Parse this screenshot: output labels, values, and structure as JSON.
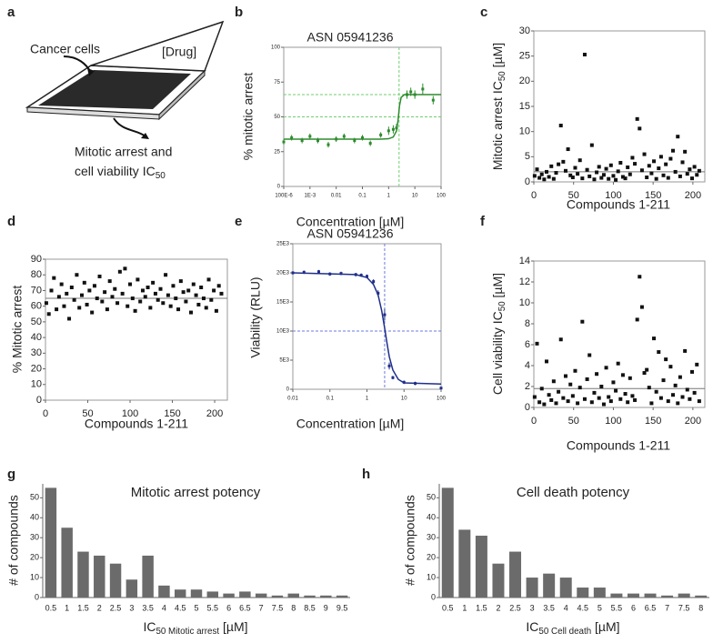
{
  "diagram": {
    "label": "a",
    "texts": [
      "Cancer cells",
      "[Drug]",
      "Mitotic arrest and"
    ],
    "last_line": [
      {
        "text": "cell viability IC"
      },
      {
        "text": "50",
        "sub": true
      }
    ]
  },
  "chart_data": [
    {
      "type": "scatter",
      "label": "b",
      "title": "ASN 05941236",
      "xlabel": "Concentration [µM]",
      "ylabel": "% mitotic arrest",
      "xlog": true,
      "color": "#2e8b2e",
      "ref_color": "#6fcf6f",
      "xlim": [
        0.0001,
        100
      ],
      "xticks": [
        {
          "value": 0.0001,
          "label": "100E-6"
        },
        {
          "value": 0.001,
          "label": "1E-3"
        },
        0.01,
        0.1,
        1,
        10,
        100
      ],
      "ylim": [
        0,
        100
      ],
      "yticks": [
        0,
        25,
        50,
        75,
        100
      ],
      "x": [
        0.0001,
        0.0002,
        0.0005,
        0.001,
        0.002,
        0.005,
        0.01,
        0.02,
        0.05,
        0.1,
        0.2,
        0.5,
        1,
        1.5,
        2,
        5,
        7,
        10,
        20,
        50
      ],
      "values": [
        32,
        35,
        33,
        36,
        33,
        30,
        34,
        36,
        33,
        35,
        31,
        37,
        40,
        41,
        42,
        66,
        68,
        66,
        70,
        62
      ],
      "errors": [
        2,
        2,
        2,
        2,
        2,
        2,
        2,
        2,
        2,
        2,
        2,
        2,
        3,
        3,
        3,
        3,
        3,
        3,
        4,
        3
      ],
      "fit": {
        "x": [
          0.0001,
          0.01,
          0.5,
          1,
          1.5,
          2,
          2.3,
          2.6,
          3,
          4,
          10,
          100
        ],
        "values": [
          34,
          34,
          34,
          34.3,
          35.5,
          40,
          48,
          58,
          64,
          66,
          66,
          66
        ]
      },
      "hlines": [
        50,
        66
      ],
      "vlines": [
        2.5
      ]
    },
    {
      "type": "scatter",
      "label": "c",
      "xlabel": "Compounds 1-211",
      "ylabel": [
        {
          "text": "Mitotic arrest  IC"
        },
        {
          "text": "50",
          "sub": true
        },
        {
          "text": " [µM]"
        }
      ],
      "color": "#111",
      "ref_color": "#777",
      "xlim": [
        0,
        215
      ],
      "xticks": [
        0,
        50,
        100,
        150,
        200
      ],
      "ylim": [
        0,
        30
      ],
      "yticks": [
        0,
        5,
        10,
        15,
        20,
        25,
        30
      ],
      "x": [
        1,
        4,
        7,
        10,
        13,
        16,
        19,
        22,
        25,
        28,
        31,
        34,
        37,
        40,
        43,
        46,
        49,
        52,
        55,
        58,
        61,
        64,
        67,
        70,
        73,
        76,
        79,
        82,
        85,
        88,
        91,
        94,
        97,
        100,
        103,
        106,
        109,
        112,
        115,
        118,
        121,
        124,
        127,
        130,
        133,
        136,
        139,
        142,
        145,
        148,
        151,
        154,
        157,
        160,
        163,
        166,
        169,
        172,
        175,
        178,
        181,
        184,
        187,
        190,
        193,
        196,
        199,
        202,
        205,
        208
      ],
      "values": [
        1.2,
        2.5,
        0.8,
        1.5,
        0.5,
        2.0,
        1.0,
        3.1,
        0.6,
        1.8,
        3.5,
        11.2,
        4.0,
        2.2,
        6.5,
        1.3,
        0.9,
        2.8,
        1.6,
        4.3,
        0.7,
        25.3,
        2.4,
        1.1,
        7.3,
        0.5,
        1.9,
        3.0,
        0.8,
        1.4,
        2.6,
        0.6,
        3.3,
        1.2,
        0.4,
        2.1,
        3.8,
        1.0,
        0.7,
        2.9,
        1.5,
        4.8,
        3.6,
        12.5,
        10.6,
        2.3,
        5.5,
        0.9,
        3.2,
        1.7,
        4.1,
        0.6,
        2.7,
        5.0,
        1.3,
        3.5,
        0.8,
        4.6,
        6.2,
        2.0,
        9.0,
        1.1,
        3.9,
        6.0,
        1.6,
        2.5,
        0.7,
        3.0,
        1.4,
        2.2
      ],
      "hlines": [
        2
      ]
    },
    {
      "type": "scatter",
      "label": "d",
      "xlabel": "Compounds 1-211",
      "ylabel": "% Mitotic arrest",
      "color": "#111",
      "ref_color": "#777",
      "xlim": [
        0,
        215
      ],
      "xticks": [
        0,
        50,
        100,
        150,
        200
      ],
      "ylim": [
        0,
        90
      ],
      "yticks": [
        0,
        10,
        20,
        30,
        40,
        50,
        60,
        70,
        80,
        90
      ],
      "x": [
        1,
        4,
        7,
        10,
        13,
        16,
        19,
        22,
        25,
        28,
        31,
        34,
        37,
        40,
        43,
        46,
        49,
        52,
        55,
        58,
        61,
        64,
        67,
        70,
        73,
        76,
        79,
        82,
        85,
        88,
        91,
        94,
        97,
        100,
        103,
        106,
        109,
        112,
        115,
        118,
        121,
        124,
        127,
        130,
        133,
        136,
        139,
        142,
        145,
        148,
        151,
        154,
        157,
        160,
        163,
        166,
        169,
        172,
        175,
        178,
        181,
        184,
        187,
        190,
        193,
        196,
        199,
        202,
        205,
        208
      ],
      "values": [
        62,
        55,
        70,
        78,
        58,
        66,
        74,
        60,
        68,
        52,
        72,
        64,
        80,
        59,
        67,
        75,
        61,
        70,
        56,
        73,
        65,
        79,
        63,
        69,
        58,
        76,
        66,
        71,
        62,
        82,
        68,
        84,
        60,
        74,
        65,
        57,
        77,
        63,
        70,
        66,
        72,
        59,
        75,
        68,
        64,
        71,
        62,
        80,
        67,
        60,
        73,
        65,
        58,
        76,
        69,
        63,
        70,
        56,
        74,
        67,
        61,
        72,
        65,
        59,
        77,
        64,
        70,
        57,
        73,
        68
      ],
      "hlines": [
        65
      ]
    },
    {
      "type": "scatter",
      "label": "e",
      "title": "ASN 05941236",
      "xlabel": "Concentration [µM]",
      "ylabel": "Viability (RLU)",
      "xlog": true,
      "color": "#1f2f8a",
      "ref_color": "#6b7be0",
      "xlim": [
        0.01,
        100
      ],
      "xticks": [
        0.01,
        0.1,
        1,
        10,
        100
      ],
      "ylim": [
        0,
        25000
      ],
      "yticks": [
        0,
        {
          "value": 5000,
          "label": "5E3"
        },
        {
          "value": 10000,
          "label": "10E3"
        },
        {
          "value": 15000,
          "label": "15E3"
        },
        {
          "value": 20000,
          "label": "20E3"
        },
        {
          "value": 25000,
          "label": "25E3"
        }
      ],
      "x": [
        0.01,
        0.02,
        0.05,
        0.1,
        0.2,
        0.5,
        0.7,
        1,
        1.5,
        2,
        3,
        4,
        5,
        10,
        20,
        100
      ],
      "values": [
        20000,
        20100,
        20200,
        19800,
        19900,
        19700,
        19600,
        19400,
        18500,
        16500,
        12800,
        4000,
        2000,
        1200,
        1000,
        200
      ],
      "errors": [
        300,
        300,
        300,
        300,
        300,
        300,
        300,
        300,
        400,
        500,
        1000,
        600,
        300,
        300,
        300,
        200
      ],
      "fit": {
        "x": [
          0.01,
          0.5,
          1,
          1.5,
          2,
          2.5,
          3,
          3.5,
          4,
          5,
          7,
          10,
          100
        ],
        "values": [
          20000,
          19700,
          19200,
          18000,
          16200,
          13500,
          10500,
          7800,
          5600,
          3300,
          1700,
          1100,
          900
        ]
      },
      "hlines": [
        10000
      ],
      "vlines": [
        3
      ]
    },
    {
      "type": "scatter",
      "label": "f",
      "xlabel": "Compounds 1-211",
      "ylabel": [
        {
          "text": "Cell viability IC"
        },
        {
          "text": "50",
          "sub": true
        },
        {
          "text": " [µM]"
        }
      ],
      "color": "#111",
      "ref_color": "#777",
      "xlim": [
        0,
        215
      ],
      "xticks": [
        0,
        50,
        100,
        150,
        200
      ],
      "ylim": [
        0,
        14
      ],
      "yticks": [
        0,
        2,
        4,
        6,
        8,
        10,
        12,
        14
      ],
      "x": [
        1,
        4,
        7,
        10,
        13,
        16,
        19,
        22,
        25,
        28,
        31,
        34,
        37,
        40,
        43,
        46,
        49,
        52,
        55,
        58,
        61,
        64,
        67,
        70,
        73,
        76,
        79,
        82,
        85,
        88,
        91,
        94,
        97,
        100,
        103,
        106,
        109,
        112,
        115,
        118,
        121,
        124,
        127,
        130,
        133,
        136,
        139,
        142,
        145,
        148,
        151,
        154,
        157,
        160,
        163,
        166,
        169,
        172,
        175,
        178,
        181,
        184,
        187,
        190,
        193,
        196,
        199,
        202,
        205,
        208
      ],
      "values": [
        1.0,
        6.1,
        0.5,
        1.8,
        0.3,
        4.4,
        1.2,
        0.7,
        2.5,
        0.4,
        1.5,
        6.5,
        0.9,
        3.0,
        0.6,
        2.2,
        1.1,
        3.5,
        0.4,
        1.9,
        8.2,
        0.8,
        2.7,
        5.0,
        0.5,
        1.4,
        3.2,
        0.9,
        2.0,
        0.3,
        3.8,
        1.0,
        0.6,
        2.4,
        1.6,
        4.2,
        0.8,
        3.1,
        1.3,
        0.5,
        2.8,
        1.1,
        0.7,
        8.4,
        12.5,
        9.6,
        3.3,
        3.6,
        1.9,
        0.4,
        6.6,
        1.5,
        5.3,
        0.9,
        2.6,
        4.6,
        0.6,
        3.9,
        1.2,
        2.1,
        0.4,
        2.9,
        1.0,
        5.4,
        1.7,
        0.8,
        3.4,
        1.4,
        4.1,
        0.6
      ],
      "hlines": [
        1.8
      ]
    },
    {
      "type": "bar",
      "label": "g",
      "title": "Mitotic arrest potency",
      "xlabel": [
        {
          "text": "IC"
        },
        {
          "text": "50 Mitotic arrest",
          "sub": true
        },
        {
          "text": " [µM]"
        }
      ],
      "ylabel": "# of compounds",
      "color": "#6b6b6b",
      "categories": [
        "0.5",
        "1",
        "1.5",
        "2",
        "2.5",
        "3",
        "3.5",
        "4",
        "4.5",
        "5",
        "5.5",
        "6",
        "6.5",
        "7",
        "7.5",
        "8",
        "8.5",
        "9",
        "9.5"
      ],
      "values": [
        55,
        35,
        23,
        21,
        17,
        9,
        21,
        6,
        4,
        4,
        3,
        2,
        3,
        2,
        1,
        2,
        1,
        1,
        1
      ],
      "ylim": [
        0,
        57
      ],
      "yticks": [
        0,
        10,
        20,
        30,
        40,
        50
      ]
    },
    {
      "type": "bar",
      "label": "h",
      "title": "Cell death potency",
      "xlabel": [
        {
          "text": "IC"
        },
        {
          "text": "50 Cell death",
          "sub": true
        },
        {
          "text": " [µM]"
        }
      ],
      "ylabel": "# of compounds",
      "color": "#6b6b6b",
      "categories": [
        "0.5",
        "1",
        "1.5",
        "2",
        "2.5",
        "3",
        "3.5",
        "4",
        "4.5",
        "5",
        "5.5",
        "6",
        "6.5",
        "7",
        "7.5",
        "8"
      ],
      "values": [
        55,
        34,
        31,
        17,
        23,
        10,
        12,
        10,
        5,
        5,
        2,
        2,
        2,
        1,
        2,
        1
      ],
      "ylim": [
        0,
        57
      ],
      "yticks": [
        0,
        10,
        20,
        30,
        40,
        50
      ]
    }
  ]
}
